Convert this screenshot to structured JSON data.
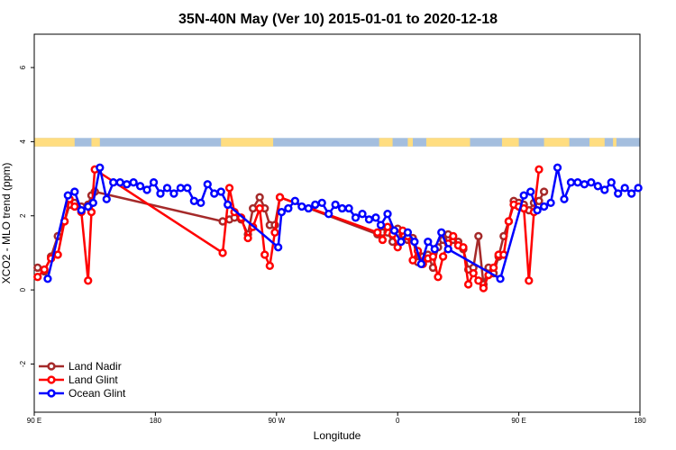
{
  "chart_data": {
    "type": "line",
    "title": "35N-40N May (Ver 10)   2015-01-01 to 2020-12-18",
    "xlabel": "Longitude",
    "ylabel": "XCO2 - MLO trend (ppm)",
    "xlim": [
      90,
      450
    ],
    "ylim": [
      -3.3,
      6.9
    ],
    "x_ticks": [
      {
        "value": 90,
        "label": "90 E"
      },
      {
        "value": 162,
        "label": "180"
      },
      {
        "value": 234,
        "label": "90 W"
      },
      {
        "value": 306,
        "label": "0"
      },
      {
        "value": 378,
        "label": "90 E"
      },
      {
        "value": 450,
        "label": "180"
      }
    ],
    "y_ticks": [
      {
        "value": -2,
        "label": "-2"
      },
      {
        "value": 0,
        "label": "0"
      },
      {
        "value": 2,
        "label": "2"
      },
      {
        "value": 4,
        "label": "4"
      },
      {
        "value": 6,
        "label": "6"
      }
    ],
    "legend": {
      "placement": "bottom-left"
    },
    "land_ocean_band": {
      "y_range": [
        3.87,
        4.1
      ],
      "land_color": "#ffdd80",
      "ocean_color": "#a4bede",
      "land_segments": [
        [
          90,
          114
        ],
        [
          124,
          129
        ],
        [
          201,
          232
        ],
        [
          295,
          303
        ],
        [
          312,
          315
        ],
        [
          323,
          349
        ],
        [
          368,
          378
        ],
        [
          393,
          408
        ],
        [
          420,
          429
        ],
        [
          434,
          436
        ]
      ]
    },
    "series": [
      {
        "name": "Land Nadir",
        "color": "#a52a2a",
        "points": [
          [
            92,
            0.6
          ],
          [
            96,
            0.5
          ],
          [
            100,
            0.9
          ],
          [
            104,
            1.45
          ],
          [
            108,
            1.85
          ],
          [
            111,
            2.3
          ],
          [
            114,
            2.35
          ],
          [
            118,
            2.25
          ],
          [
            122,
            2.3
          ],
          [
            124,
            2.55
          ],
          [
            126,
            2.65
          ],
          [
            202,
            1.85
          ],
          [
            206,
            1.9
          ],
          [
            209,
            1.95
          ],
          [
            213,
            1.9
          ],
          [
            217,
            1.5
          ],
          [
            220,
            2.2
          ],
          [
            224,
            2.5
          ],
          [
            227,
            2.2
          ],
          [
            230,
            1.75
          ],
          [
            233,
            1.75
          ],
          [
            236,
            2.5
          ],
          [
            294,
            1.5
          ],
          [
            297,
            1.55
          ],
          [
            300,
            1.55
          ],
          [
            303,
            1.3
          ],
          [
            306,
            1.65
          ],
          [
            309,
            1.5
          ],
          [
            312,
            1.35
          ],
          [
            315,
            1.4
          ],
          [
            318,
            0.75
          ],
          [
            321,
            0.9
          ],
          [
            324,
            0.95
          ],
          [
            327,
            0.6
          ],
          [
            330,
            1.15
          ],
          [
            333,
            1.35
          ],
          [
            336,
            1.5
          ],
          [
            339,
            1.35
          ],
          [
            342,
            1.3
          ],
          [
            345,
            1.1
          ],
          [
            348,
            0.55
          ],
          [
            351,
            0.6
          ],
          [
            354,
            1.45
          ],
          [
            357,
            0.15
          ],
          [
            360,
            0.6
          ],
          [
            363,
            0.45
          ],
          [
            366,
            0.9
          ],
          [
            369,
            1.45
          ],
          [
            372,
            1.85
          ],
          [
            375,
            2.4
          ],
          [
            378,
            2.35
          ],
          [
            381,
            2.3
          ],
          [
            384,
            2.15
          ],
          [
            387,
            2.35
          ],
          [
            390,
            2.4
          ],
          [
            393,
            2.65
          ]
        ]
      },
      {
        "name": "Land Glint",
        "color": "#ff0000",
        "points": [
          [
            92,
            0.35
          ],
          [
            96,
            0.55
          ],
          [
            100,
            0.85
          ],
          [
            104,
            0.95
          ],
          [
            108,
            1.85
          ],
          [
            111,
            2.45
          ],
          [
            114,
            2.25
          ],
          [
            118,
            2.1
          ],
          [
            122,
            0.25
          ],
          [
            124,
            2.1
          ],
          [
            126,
            3.25
          ],
          [
            202,
            1.0
          ],
          [
            206,
            2.75
          ],
          [
            209,
            2.1
          ],
          [
            213,
            1.95
          ],
          [
            217,
            1.4
          ],
          [
            220,
            1.7
          ],
          [
            224,
            2.2
          ],
          [
            227,
            0.95
          ],
          [
            230,
            0.65
          ],
          [
            233,
            1.55
          ],
          [
            236,
            2.5
          ],
          [
            294,
            1.55
          ],
          [
            297,
            1.35
          ],
          [
            300,
            1.7
          ],
          [
            303,
            1.5
          ],
          [
            306,
            1.15
          ],
          [
            309,
            1.6
          ],
          [
            312,
            1.45
          ],
          [
            315,
            0.8
          ],
          [
            318,
            1.05
          ],
          [
            321,
            0.7
          ],
          [
            324,
            0.85
          ],
          [
            327,
            0.9
          ],
          [
            330,
            0.35
          ],
          [
            333,
            0.9
          ],
          [
            336,
            1.25
          ],
          [
            339,
            1.45
          ],
          [
            342,
            1.2
          ],
          [
            345,
            1.15
          ],
          [
            348,
            0.15
          ],
          [
            351,
            0.45
          ],
          [
            354,
            0.25
          ],
          [
            357,
            0.05
          ],
          [
            360,
            0.4
          ],
          [
            363,
            0.6
          ],
          [
            366,
            0.95
          ],
          [
            369,
            0.95
          ],
          [
            372,
            1.85
          ],
          [
            375,
            2.3
          ],
          [
            378,
            2.25
          ],
          [
            381,
            2.2
          ],
          [
            384,
            0.25
          ],
          [
            387,
            2.1
          ],
          [
            390,
            3.25
          ]
        ]
      },
      {
        "name": "Ocean Glint",
        "color": "#0000ff",
        "points": [
          [
            98,
            0.3
          ],
          [
            110,
            2.55
          ],
          [
            114,
            2.65
          ],
          [
            118,
            2.15
          ],
          [
            122,
            2.25
          ],
          [
            125,
            2.35
          ],
          [
            129,
            3.3
          ],
          [
            133,
            2.45
          ],
          [
            137,
            2.9
          ],
          [
            141,
            2.9
          ],
          [
            145,
            2.85
          ],
          [
            149,
            2.9
          ],
          [
            153,
            2.8
          ],
          [
            157,
            2.7
          ],
          [
            161,
            2.9
          ],
          [
            165,
            2.6
          ],
          [
            169,
            2.75
          ],
          [
            173,
            2.6
          ],
          [
            177,
            2.75
          ],
          [
            181,
            2.75
          ],
          [
            185,
            2.4
          ],
          [
            189,
            2.35
          ],
          [
            193,
            2.85
          ],
          [
            197,
            2.6
          ],
          [
            201,
            2.65
          ],
          [
            205,
            2.3
          ],
          [
            235,
            1.15
          ],
          [
            237,
            2.1
          ],
          [
            241,
            2.2
          ],
          [
            245,
            2.4
          ],
          [
            249,
            2.25
          ],
          [
            253,
            2.2
          ],
          [
            257,
            2.3
          ],
          [
            261,
            2.35
          ],
          [
            265,
            2.05
          ],
          [
            269,
            2.3
          ],
          [
            273,
            2.2
          ],
          [
            277,
            2.2
          ],
          [
            281,
            1.95
          ],
          [
            285,
            2.05
          ],
          [
            289,
            1.9
          ],
          [
            293,
            1.95
          ],
          [
            296,
            1.75
          ],
          [
            300,
            2.05
          ],
          [
            304,
            1.6
          ],
          [
            308,
            1.3
          ],
          [
            312,
            1.55
          ],
          [
            316,
            1.3
          ],
          [
            320,
            0.7
          ],
          [
            324,
            1.3
          ],
          [
            328,
            1.1
          ],
          [
            332,
            1.55
          ],
          [
            336,
            1.1
          ],
          [
            367,
            0.3
          ],
          [
            381,
            2.55
          ],
          [
            385,
            2.65
          ],
          [
            389,
            2.15
          ],
          [
            393,
            2.25
          ],
          [
            397,
            2.35
          ],
          [
            401,
            3.3
          ],
          [
            405,
            2.45
          ],
          [
            409,
            2.9
          ],
          [
            413,
            2.9
          ],
          [
            417,
            2.85
          ],
          [
            421,
            2.9
          ],
          [
            425,
            2.8
          ],
          [
            429,
            2.7
          ],
          [
            433,
            2.9
          ],
          [
            437,
            2.6
          ],
          [
            441,
            2.75
          ],
          [
            445,
            2.6
          ],
          [
            449,
            2.75
          ]
        ]
      }
    ]
  }
}
